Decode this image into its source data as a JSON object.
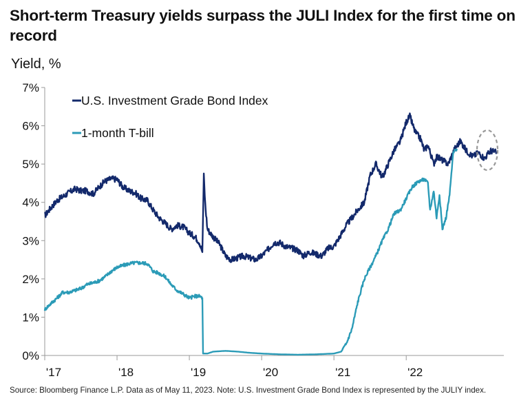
{
  "title": "Short-term Treasury yields surpass the JULI Index for the first time on record",
  "source": "Source: Bloomberg Finance L.P. Data as of May 11, 2023. Note: U.S. Investment Grade Bond Index is represented by the JULIY index.",
  "colors": {
    "ig_bond": "#13296b",
    "tbill": "#2b9bb7",
    "highlight_circle": "#999999",
    "axis": "#999999"
  },
  "chart_data": {
    "type": "line",
    "ylabel": "Yield, %",
    "xlabel": "",
    "x_tick_labels": [
      "'17",
      "'18",
      "'19",
      "'20",
      "'21",
      "'22"
    ],
    "y_tick_labels": [
      "0%",
      "1%",
      "2%",
      "3%",
      "4%",
      "5%",
      "6%",
      "7%"
    ],
    "xlim": [
      2017.0,
      2023.35
    ],
    "ylim": [
      0,
      7
    ],
    "grid": false,
    "legend": "top-left",
    "annotation": "dashed circle highlighting crossover in May 2023",
    "series": [
      {
        "name": "U.S. Investment Grade Bond Index",
        "color": "#13296b",
        "points": [
          [
            2017.0,
            3.65
          ],
          [
            2017.08,
            3.85
          ],
          [
            2017.17,
            4.05
          ],
          [
            2017.25,
            4.15
          ],
          [
            2017.33,
            4.25
          ],
          [
            2017.42,
            4.35
          ],
          [
            2017.5,
            4.3
          ],
          [
            2017.58,
            4.3
          ],
          [
            2017.67,
            4.22
          ],
          [
            2017.75,
            4.4
          ],
          [
            2017.83,
            4.55
          ],
          [
            2017.92,
            4.62
          ],
          [
            2018.0,
            4.6
          ],
          [
            2018.08,
            4.4
          ],
          [
            2018.17,
            4.3
          ],
          [
            2018.25,
            4.25
          ],
          [
            2018.33,
            4.1
          ],
          [
            2018.42,
            4.05
          ],
          [
            2018.5,
            3.8
          ],
          [
            2018.58,
            3.6
          ],
          [
            2018.67,
            3.45
          ],
          [
            2018.75,
            3.3
          ],
          [
            2018.83,
            3.4
          ],
          [
            2018.92,
            3.35
          ],
          [
            2019.0,
            3.2
          ],
          [
            2019.08,
            3.1
          ],
          [
            2019.14,
            2.95
          ],
          [
            2019.18,
            2.7
          ],
          [
            2019.2,
            4.7
          ],
          [
            2019.22,
            3.95
          ],
          [
            2019.25,
            3.3
          ],
          [
            2019.33,
            3.1
          ],
          [
            2019.42,
            2.9
          ],
          [
            2019.5,
            2.6
          ],
          [
            2019.58,
            2.5
          ],
          [
            2019.67,
            2.55
          ],
          [
            2019.75,
            2.6
          ],
          [
            2019.83,
            2.55
          ],
          [
            2019.92,
            2.5
          ],
          [
            2020.0,
            2.6
          ],
          [
            2020.08,
            2.75
          ],
          [
            2020.17,
            2.95
          ],
          [
            2020.25,
            2.95
          ],
          [
            2020.33,
            2.85
          ],
          [
            2020.42,
            2.8
          ],
          [
            2020.5,
            2.75
          ],
          [
            2020.58,
            2.6
          ],
          [
            2020.67,
            2.7
          ],
          [
            2020.75,
            2.65
          ],
          [
            2020.83,
            2.6
          ],
          [
            2020.92,
            2.8
          ],
          [
            2021.0,
            2.85
          ],
          [
            2021.08,
            3.1
          ],
          [
            2021.17,
            3.4
          ],
          [
            2021.25,
            3.6
          ],
          [
            2021.33,
            3.8
          ],
          [
            2021.42,
            4.0
          ],
          [
            2021.5,
            4.7
          ],
          [
            2021.58,
            5.0
          ],
          [
            2021.67,
            4.65
          ],
          [
            2021.75,
            5.0
          ],
          [
            2021.83,
            5.35
          ],
          [
            2021.92,
            5.6
          ],
          [
            2022.0,
            6.1
          ],
          [
            2022.05,
            6.25
          ],
          [
            2022.12,
            5.85
          ],
          [
            2022.2,
            5.65
          ],
          [
            2022.25,
            5.35
          ],
          [
            2022.3,
            5.5
          ],
          [
            2022.38,
            5.0
          ],
          [
            2022.42,
            5.2
          ],
          [
            2022.5,
            5.1
          ],
          [
            2022.58,
            5.0
          ],
          [
            2022.67,
            5.4
          ],
          [
            2022.75,
            5.6
          ],
          [
            2022.83,
            5.35
          ],
          [
            2022.92,
            5.2
          ],
          [
            2023.0,
            5.3
          ],
          [
            2023.08,
            5.15
          ],
          [
            2023.17,
            5.35
          ],
          [
            2023.25,
            5.3
          ]
        ]
      },
      {
        "name": "1-month T-bill",
        "color": "#2b9bb7",
        "points": [
          [
            2017.0,
            1.2
          ],
          [
            2017.08,
            1.35
          ],
          [
            2017.17,
            1.5
          ],
          [
            2017.25,
            1.65
          ],
          [
            2017.33,
            1.65
          ],
          [
            2017.42,
            1.7
          ],
          [
            2017.5,
            1.75
          ],
          [
            2017.58,
            1.85
          ],
          [
            2017.67,
            1.9
          ],
          [
            2017.75,
            1.95
          ],
          [
            2017.83,
            2.05
          ],
          [
            2017.92,
            2.2
          ],
          [
            2018.0,
            2.3
          ],
          [
            2018.08,
            2.35
          ],
          [
            2018.17,
            2.4
          ],
          [
            2018.25,
            2.42
          ],
          [
            2018.33,
            2.42
          ],
          [
            2018.42,
            2.4
          ],
          [
            2018.5,
            2.2
          ],
          [
            2018.58,
            2.15
          ],
          [
            2018.67,
            2.05
          ],
          [
            2018.75,
            1.85
          ],
          [
            2018.83,
            1.7
          ],
          [
            2018.92,
            1.6
          ],
          [
            2019.0,
            1.5
          ],
          [
            2019.08,
            1.55
          ],
          [
            2019.14,
            1.55
          ],
          [
            2019.18,
            1.5
          ],
          [
            2019.19,
            0.05
          ],
          [
            2019.25,
            0.05
          ],
          [
            2019.33,
            0.1
          ],
          [
            2019.5,
            0.12
          ],
          [
            2019.67,
            0.1
          ],
          [
            2019.83,
            0.07
          ],
          [
            2020.0,
            0.05
          ],
          [
            2020.25,
            0.03
          ],
          [
            2020.5,
            0.02
          ],
          [
            2020.75,
            0.03
          ],
          [
            2021.0,
            0.05
          ],
          [
            2021.1,
            0.1
          ],
          [
            2021.17,
            0.3
          ],
          [
            2021.25,
            0.7
          ],
          [
            2021.33,
            1.4
          ],
          [
            2021.42,
            2.0
          ],
          [
            2021.5,
            2.3
          ],
          [
            2021.58,
            2.6
          ],
          [
            2021.67,
            3.0
          ],
          [
            2021.75,
            3.3
          ],
          [
            2021.83,
            3.7
          ],
          [
            2021.92,
            3.8
          ],
          [
            2022.0,
            4.1
          ],
          [
            2022.08,
            4.4
          ],
          [
            2022.17,
            4.55
          ],
          [
            2022.25,
            4.6
          ],
          [
            2022.3,
            4.5
          ],
          [
            2022.33,
            3.8
          ],
          [
            2022.38,
            4.3
          ],
          [
            2022.42,
            3.6
          ],
          [
            2022.46,
            4.2
          ],
          [
            2022.5,
            3.3
          ],
          [
            2022.55,
            3.6
          ],
          [
            2022.6,
            4.2
          ],
          [
            2022.65,
            5.3
          ],
          [
            2022.7,
            5.4
          ]
        ]
      }
    ]
  }
}
